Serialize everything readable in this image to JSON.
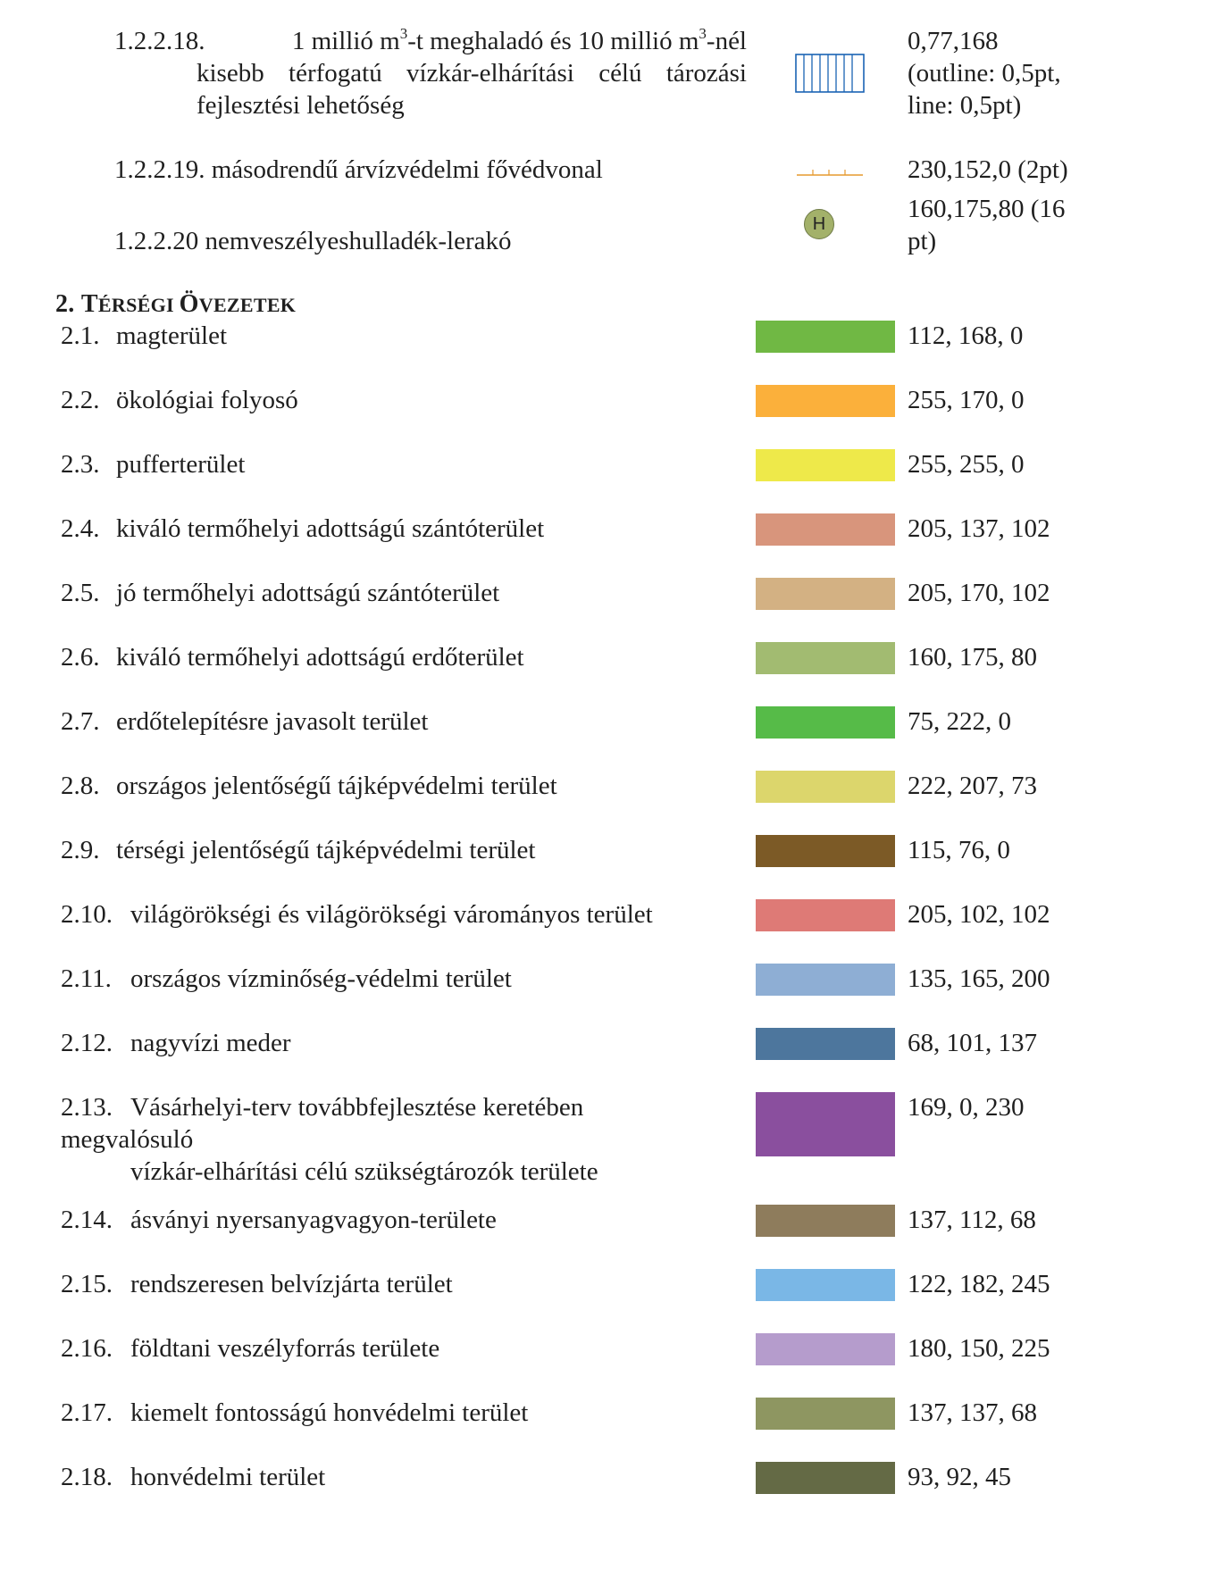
{
  "top_items": {
    "i18": {
      "number": "1.2.2.18.",
      "line1_a": "1 millió m",
      "sup1": "3",
      "line1_b": "-t meghaladó és 10 millió m",
      "sup2": "3",
      "line1_c": "-nél",
      "line2": "kisebb térfogatú vízkár-elhárítási célú tározási",
      "line3": "fejlesztési lehetőség",
      "value_lines": [
        "0,77,168",
        "(outline: 0,5pt,",
        "line: 0,5pt)"
      ]
    },
    "i19": {
      "label": "1.2.2.19. másodrendű árvízvédelmi fővédvonal",
      "value": "230,152,0 (2pt)"
    },
    "i20": {
      "label": "1.2.2.20 nemveszélyeshulladék-lerakó",
      "symbol_letter": "H",
      "value_lines": [
        "160,175,80 (16",
        "pt)"
      ]
    }
  },
  "section": {
    "number": "2.",
    "title_caps": [
      "T",
      "ÉRSÉGI ",
      "Ö",
      "VEZETEK"
    ]
  },
  "zones": [
    {
      "number": "2.1.",
      "label": "magterület",
      "rgb": "112, 168, 0",
      "color": "#70b844"
    },
    {
      "number": "2.2.",
      "label": "ökológiai folyosó",
      "rgb": "255, 170, 0",
      "color": "#fbb03b"
    },
    {
      "number": "2.3.",
      "label": "pufferterület",
      "rgb": "255, 255, 0",
      "color": "#eee94a"
    },
    {
      "number": "2.4.",
      "label": "kiváló termőhelyi adottságú szántóterület",
      "rgb": "205, 137, 102",
      "color": "#d8957c"
    },
    {
      "number": "2.5.",
      "label": "jó termőhelyi adottságú szántóterület",
      "rgb": "205, 170, 102",
      "color": "#d3b183"
    },
    {
      "number": "2.6.",
      "label": "kiváló termőhelyi adottságú erdőterület",
      "rgb": "160, 175, 80",
      "color": "#a2bb71"
    },
    {
      "number": "2.7.",
      "label": "erdőtelepítésre javasolt terület",
      "rgb": "75, 222, 0",
      "color": "#56bb48"
    },
    {
      "number": "2.8.",
      "label": "országos jelentőségű tájképvédelmi terület",
      "rgb": "222, 207, 73",
      "color": "#dcd66c"
    },
    {
      "number": "2.9.",
      "label": "térségi jelentőségű tájképvédelmi terület",
      "rgb": "115, 76, 0",
      "color": "#7c5a26"
    },
    {
      "number": "2.10.",
      "label": "világörökségi és világörökségi várományos terület",
      "rgb": "205, 102, 102",
      "color": "#de7a76"
    },
    {
      "number": "2.11.",
      "label": "országos vízminőség-védelmi terület",
      "rgb": "135, 165, 200",
      "color": "#8eaed4"
    },
    {
      "number": "2.12.",
      "label": "nagyvízi meder",
      "rgb": "68, 101, 137",
      "color": "#4d769d"
    },
    {
      "number": "2.13.",
      "label": "Vásárhelyi-terv továbbfejlesztése keretében",
      "label_line2": "megvalósuló",
      "label_line3": "vízkár-elhárítási célú szükségtározók területe",
      "rgb": "169, 0, 230",
      "color": "#8a4f9e"
    },
    {
      "number": "2.14.",
      "label": "ásványi nyersanyagvagyon-területe",
      "rgb": "137, 112, 68",
      "color": "#8e7c5c"
    },
    {
      "number": "2.15.",
      "label": "rendszeresen belvízjárta terület",
      "rgb": "122, 182, 245",
      "color": "#7ab7e6"
    },
    {
      "number": "2.16.",
      "label": "földtani veszélyforrás területe",
      "rgb": "180, 150, 225",
      "color": "#b59ccc"
    },
    {
      "number": "2.17.",
      "label": "kiemelt fontosságú honvédelmi terület",
      "rgb": "137, 137, 68",
      "color": "#8e9661"
    },
    {
      "number": "2.18.",
      "label": "honvédelmi terület",
      "rgb": "93, 92, 45",
      "color": "#646a45"
    }
  ]
}
